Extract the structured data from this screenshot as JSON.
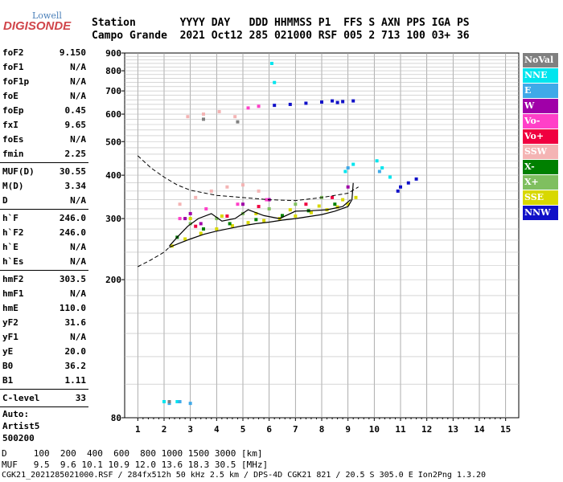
{
  "logo": {
    "top": "Lowell",
    "bottom": "DIGISONDE"
  },
  "header": {
    "line1": "Station       YYYY DAY   DDD HHMMSS P1  FFS S AXN PPS IGA PS",
    "line2": "Campo Grande  2021 Oct12 285 021000 RSF 005 2 713 100 03+ 36"
  },
  "params": [
    {
      "label": "foF2",
      "value": "9.150"
    },
    {
      "label": "foF1",
      "value": "N/A"
    },
    {
      "label": "foF1p",
      "value": "N/A"
    },
    {
      "label": "foE",
      "value": "N/A"
    },
    {
      "label": "foEp",
      "value": "0.45"
    },
    {
      "label": "fxI",
      "value": "9.65"
    },
    {
      "label": "foEs",
      "value": "N/A"
    },
    {
      "label": "fmin",
      "value": "2.25"
    },
    {
      "label": "MUF(D)",
      "value": "30.55"
    },
    {
      "label": "M(D)",
      "value": "3.34"
    },
    {
      "label": "D",
      "value": "N/A"
    },
    {
      "label": "h`F",
      "value": "246.0"
    },
    {
      "label": "h`F2",
      "value": "246.0"
    },
    {
      "label": "h`E",
      "value": "N/A"
    },
    {
      "label": "h`Es",
      "value": "N/A"
    },
    {
      "label": "hmF2",
      "value": "303.5"
    },
    {
      "label": "hmF1",
      "value": "N/A"
    },
    {
      "label": "hmE",
      "value": "110.0"
    },
    {
      "label": "yF2",
      "value": "31.6"
    },
    {
      "label": "yF1",
      "value": "N/A"
    },
    {
      "label": "yE",
      "value": "20.0"
    },
    {
      "label": "B0",
      "value": "36.2"
    },
    {
      "label": "B1",
      "value": "1.11"
    },
    {
      "label": "C-level",
      "value": "33"
    }
  ],
  "auto": {
    "line1": "Auto:",
    "line2": "Artist5",
    "line3": "500200"
  },
  "legend": [
    {
      "label": "NoVal",
      "color": "#808080"
    },
    {
      "label": "NNE",
      "color": "#00e5ee"
    },
    {
      "label": "E",
      "color": "#3fa9e8"
    },
    {
      "label": "W",
      "color": "#a000a8"
    },
    {
      "label": "Vo-",
      "color": "#ff40c8"
    },
    {
      "label": "Vo+",
      "color": "#f00040"
    },
    {
      "label": "SSW",
      "color": "#f4b4b4"
    },
    {
      "label": "X-",
      "color": "#008000"
    },
    {
      "label": "X+",
      "color": "#7fbf5f"
    },
    {
      "label": "SSE",
      "color": "#d8d800"
    },
    {
      "label": "NNW",
      "color": "#1010c8"
    }
  ],
  "footer": {
    "line1": "D     100  200  400  600  800 1000 1500 3000 [km]",
    "line2": "MUF   9.5  9.6 10.1 10.9 12.0 13.6 18.3 30.5 [MHz]",
    "line3": "CGK21_2021285021000.RSF / 284fx512h 50 kHz 2.5 km / DPS-4D CGK21 821 / 20.5 S 305.0 E Ion2Png 1.3.20"
  },
  "chart_data": {
    "type": "scatter",
    "title": "",
    "xlabel": "",
    "ylabel": "",
    "xlim": [
      1,
      15
    ],
    "ylim": [
      80,
      900
    ],
    "y_scale": "log",
    "xticks": [
      "1",
      "2",
      "3",
      "4",
      "5",
      "6",
      "7",
      "8",
      "9",
      "10",
      "11",
      "12",
      "13",
      "14",
      "15"
    ],
    "yticks": [
      "80",
      "200",
      "300",
      "400",
      "500",
      "600",
      "700",
      "800",
      "900"
    ],
    "grid": true,
    "series": [
      {
        "name": "SSE",
        "color": "#d8d800",
        "x": [
          2.3,
          2.8,
          3.4,
          4.0,
          4.6,
          5.2,
          5.8,
          6.4,
          7.0,
          7.6,
          8.2,
          8.6,
          9.0,
          9.3,
          3.0,
          4.2,
          5.5,
          6.8,
          7.9,
          8.8
        ],
        "y": [
          250,
          262,
          272,
          280,
          286,
          292,
          296,
          300,
          305,
          312,
          318,
          324,
          330,
          345,
          300,
          305,
          310,
          318,
          326,
          340
        ]
      },
      {
        "name": "SSW",
        "color": "#f4b4b4",
        "x": [
          2.6,
          3.2,
          3.8,
          4.4,
          5.0,
          5.6,
          3.5,
          4.7,
          2.9,
          4.1
        ],
        "y": [
          330,
          345,
          360,
          370,
          375,
          360,
          600,
          590,
          590,
          610
        ]
      },
      {
        "name": "X-",
        "color": "#008000",
        "x": [
          2.5,
          3.5,
          4.5,
          5.5,
          6.5,
          7.5,
          8.5
        ],
        "y": [
          265,
          280,
          290,
          298,
          306,
          316,
          330
        ]
      },
      {
        "name": "X+",
        "color": "#7fbf5f",
        "x": [
          3.0,
          4.0,
          5.0,
          6.0,
          7.0,
          8.0
        ],
        "y": [
          290,
          300,
          310,
          320,
          330,
          345
        ]
      },
      {
        "name": "NNE",
        "color": "#00e5ee",
        "x": [
          8.9,
          9.2,
          10.1,
          10.3,
          10.6,
          6.1,
          6.2,
          2.0,
          2.5
        ],
        "y": [
          410,
          430,
          440,
          420,
          395,
          840,
          740,
          89,
          89
        ]
      },
      {
        "name": "E",
        "color": "#3fa9e8",
        "x": [
          2.2,
          2.6,
          3.0,
          9.0,
          10.2
        ],
        "y": [
          88,
          89,
          88,
          420,
          410
        ]
      },
      {
        "name": "W",
        "color": "#a000a8",
        "x": [
          3.0,
          5.0,
          6.0,
          2.8,
          3.4,
          9.0
        ],
        "y": [
          310,
          330,
          340,
          300,
          290,
          370
        ]
      },
      {
        "name": "Vo-",
        "color": "#ff40c8",
        "x": [
          2.6,
          3.6,
          4.8,
          5.9,
          5.2,
          5.6
        ],
        "y": [
          300,
          320,
          330,
          340,
          625,
          632
        ]
      },
      {
        "name": "Vo+",
        "color": "#f00040",
        "x": [
          3.2,
          4.4,
          5.6,
          7.4,
          8.4
        ],
        "y": [
          285,
          305,
          325,
          330,
          345
        ]
      },
      {
        "name": "NNW",
        "color": "#1010c8",
        "x": [
          6.2,
          6.8,
          7.4,
          8.0,
          8.4,
          8.8,
          9.2,
          11.0,
          11.3,
          11.6,
          10.9,
          8.6
        ],
        "y": [
          636,
          640,
          645,
          650,
          655,
          652,
          655,
          370,
          380,
          390,
          360,
          648
        ]
      },
      {
        "name": "NoVal",
        "color": "#808080",
        "x": [
          2.2,
          3.5,
          4.8
        ],
        "y": [
          89,
          580,
          570
        ]
      }
    ],
    "curves": [
      {
        "name": "",
        "style": "dashed",
        "x": [
          1.0,
          1.5,
          2.0,
          2.5,
          3.0,
          4.0,
          5.0,
          6.0,
          7.0,
          8.0,
          9.0,
          9.4
        ],
        "y": [
          455,
          420,
          395,
          375,
          362,
          350,
          345,
          340,
          338,
          345,
          355,
          370
        ]
      },
      {
        "name": "",
        "style": "dashed",
        "x": [
          1.0,
          1.5,
          2.0,
          2.2
        ],
        "y": [
          218,
          228,
          240,
          248
        ]
      },
      {
        "name": "",
        "style": "solid",
        "x": [
          2.2,
          2.6,
          3.0,
          3.5,
          4.0,
          4.5,
          5.0,
          5.5,
          6.0,
          6.5,
          7.0,
          7.5,
          8.0,
          8.5,
          9.0,
          9.15,
          9.2
        ],
        "y": [
          248,
          255,
          262,
          270,
          276,
          281,
          286,
          290,
          293,
          297,
          300,
          304,
          308,
          315,
          325,
          340,
          380
        ]
      },
      {
        "name": "",
        "style": "solid",
        "x": [
          2.2,
          2.5,
          2.9,
          3.3,
          3.8,
          4.2,
          4.7,
          5.2,
          5.8,
          6.4,
          7.0,
          7.6,
          8.2,
          8.8,
          9.1
        ],
        "y": [
          250,
          265,
          285,
          300,
          310,
          295,
          300,
          318,
          306,
          300,
          315,
          316,
          318,
          325,
          340
        ]
      }
    ]
  }
}
